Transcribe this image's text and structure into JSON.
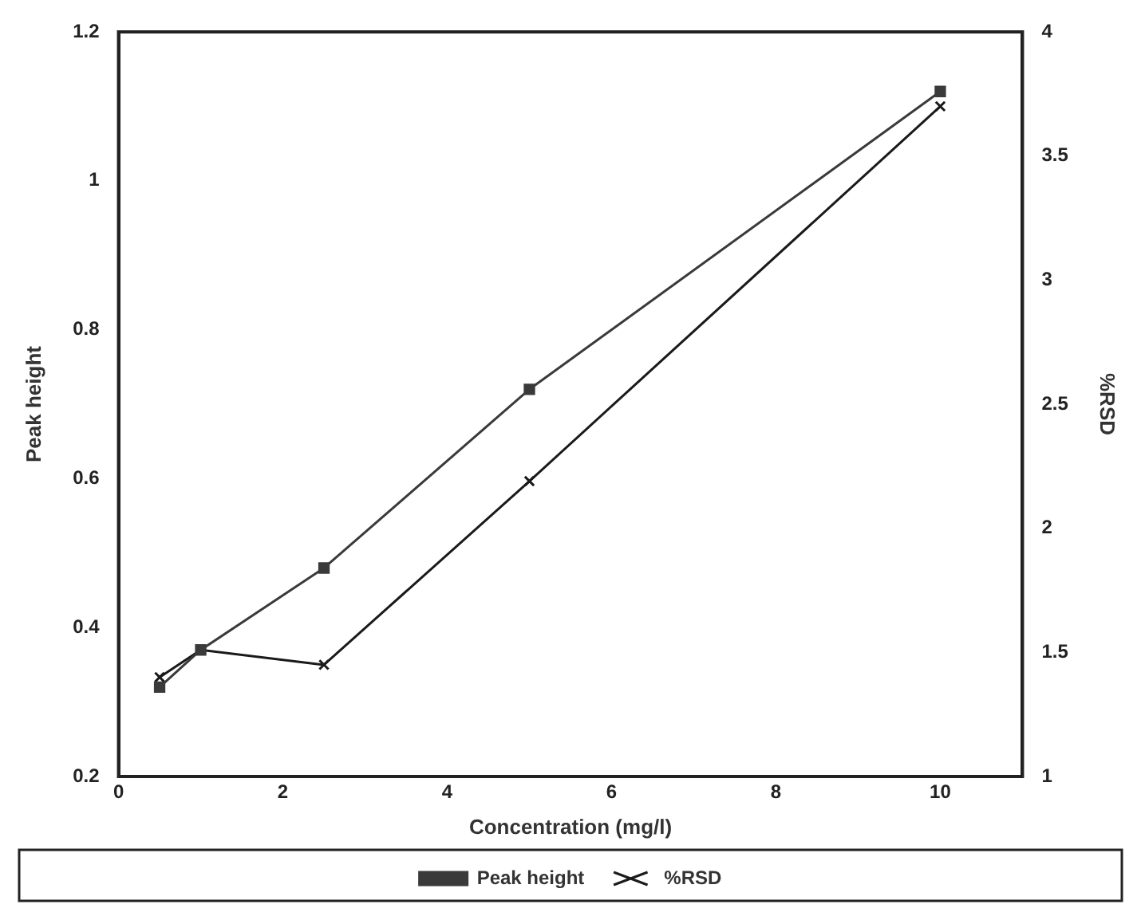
{
  "chart_data": {
    "type": "line",
    "xlabel": "Concentration (mg/l)",
    "ylabel": "Peak height",
    "y2label": "%RSD",
    "x": [
      0.5,
      1,
      2.5,
      5,
      10
    ],
    "series": [
      {
        "name": "Peak height",
        "color": "#3a3a3a",
        "values": [
          0.32,
          0.37,
          0.48,
          0.72,
          1.12
        ],
        "marker": "square"
      },
      {
        "name": "%RSD",
        "color": "#1a1a1a",
        "values": [
          1.4,
          1.51,
          1.45,
          2.19,
          3.7
        ],
        "axis": "y2",
        "marker": "cross"
      }
    ],
    "xlim": [
      0,
      11
    ],
    "xticks": [
      0,
      2,
      4,
      6,
      8,
      10
    ],
    "ylim": [
      0.2,
      1.2
    ],
    "yticks": [
      0.2,
      0.4,
      0.6,
      0.8,
      1,
      1.2
    ],
    "y2lim": [
      1,
      4
    ],
    "y2ticks": [
      1,
      1.5,
      2,
      2.5,
      3,
      3.5,
      4
    ],
    "grid": false,
    "legend": "bottom",
    "line_style": "solid"
  }
}
